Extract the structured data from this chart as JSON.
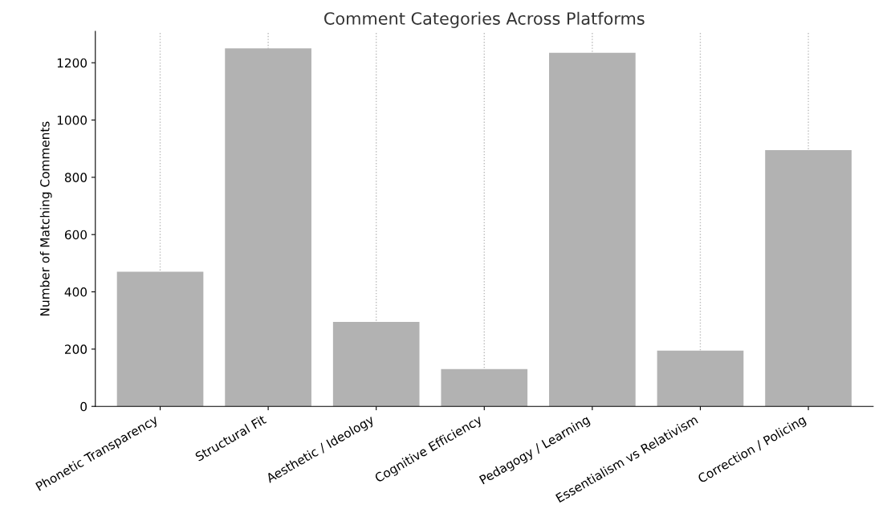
{
  "chart_data": {
    "type": "bar",
    "title": "Comment Categories Across Platforms",
    "ylabel": "Number of Matching Comments",
    "categories": [
      "Phonetic Transparency",
      "Structural Fit",
      "Aesthetic / Ideology",
      "Cognitive Efficiency",
      "Pedagogy / Learning",
      "Essentialism vs Relativism",
      "Correction / Policing"
    ],
    "values": [
      470,
      1250,
      295,
      130,
      1235,
      195,
      895
    ],
    "color": "#b2b2b2",
    "ylim": [
      0,
      1310
    ],
    "yticks": [
      0,
      200,
      400,
      600,
      800,
      1000,
      1200
    ],
    "grid": "x"
  }
}
